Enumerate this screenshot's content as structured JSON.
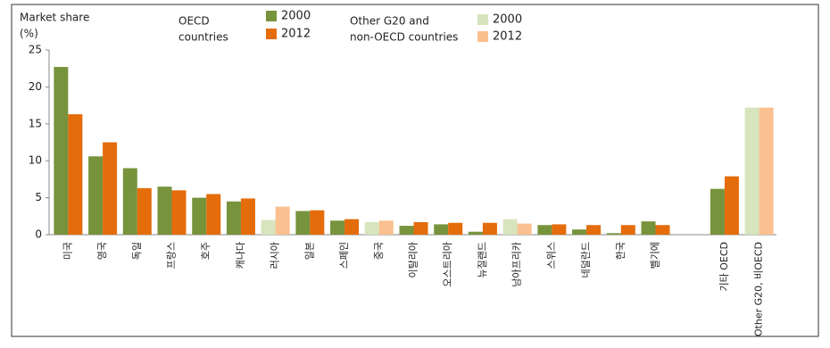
{
  "chart_data": {
    "type": "bar",
    "y_label": [
      "Market share",
      "(%)"
    ],
    "legend_titles": [
      [
        "OECD",
        "countries"
      ],
      [
        "Other G20 and",
        "non-OECD countries"
      ]
    ],
    "categories": [
      "미국",
      "영국",
      "독일",
      "프랑스",
      "호주",
      "캐나다",
      "러시아",
      "일본",
      "스페인",
      "중국",
      "이탈리아",
      "오스트리아",
      "뉴질랜드",
      "남아프리카",
      "스위스",
      "네덜란드",
      "한국",
      "벨기에",
      null,
      "기타 OECD",
      "Other G20, 비OECD"
    ],
    "series": [
      {
        "name": "2000",
        "color": "#77933c",
        "values": [
          22.7,
          10.6,
          9.0,
          6.5,
          5.0,
          4.5,
          null,
          3.2,
          1.9,
          null,
          1.2,
          1.4,
          0.4,
          null,
          1.3,
          0.7,
          0.2,
          1.8,
          null,
          6.2,
          null
        ]
      },
      {
        "name": "2012",
        "color": "#e46c0a",
        "values": [
          16.3,
          12.5,
          6.3,
          6.0,
          5.5,
          4.9,
          null,
          3.3,
          2.1,
          null,
          1.7,
          1.6,
          1.6,
          null,
          1.4,
          1.3,
          1.3,
          1.3,
          null,
          7.9,
          null
        ]
      },
      {
        "name": "2000",
        "color": "#d7e4bd",
        "values": [
          null,
          null,
          null,
          null,
          null,
          null,
          2.0,
          null,
          null,
          1.7,
          null,
          null,
          null,
          2.1,
          null,
          null,
          null,
          null,
          null,
          null,
          17.2
        ]
      },
      {
        "name": "2012",
        "color": "#fac090",
        "values": [
          null,
          null,
          null,
          null,
          null,
          null,
          3.8,
          null,
          null,
          1.9,
          null,
          null,
          null,
          1.5,
          null,
          null,
          null,
          null,
          null,
          null,
          17.2
        ]
      }
    ],
    "ylim": [
      0,
      25
    ],
    "yticks": [
      0,
      5,
      10,
      15,
      20,
      25
    ],
    "grid": false
  }
}
